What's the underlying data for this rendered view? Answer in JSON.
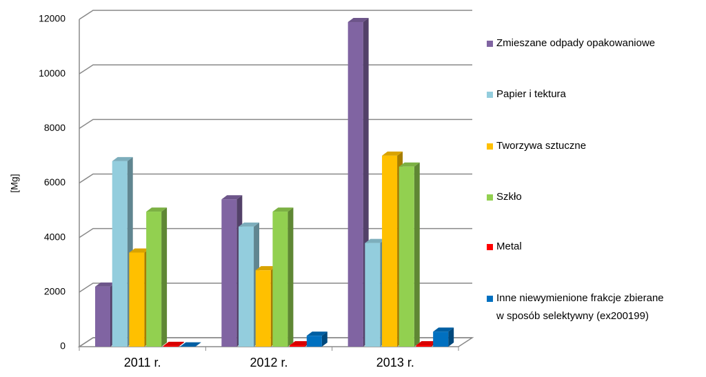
{
  "chart_data": {
    "type": "bar3d",
    "y_label": "[Mg]",
    "categories": [
      "2011 r.",
      "2012 r.",
      "2013 r."
    ],
    "series": [
      {
        "name": "Zmieszane odpady opakowaniowe",
        "color": "#8064a2",
        "values": [
          2200,
          5400,
          11900
        ]
      },
      {
        "name": "Papier i tektura",
        "color": "#93cddd",
        "values": [
          6800,
          4400,
          3800
        ]
      },
      {
        "name": "Tworzywa sztuczne",
        "color": "#ffc000",
        "values": [
          3450,
          2800,
          7000
        ]
      },
      {
        "name": "Szkło",
        "color": "#92d050",
        "values": [
          4950,
          4950,
          6600
        ]
      },
      {
        "name": "Metal",
        "color": "#ff0000",
        "values": [
          30,
          50,
          50
        ]
      },
      {
        "name": "Inne niewymienione frakcje zbierane w sposób selektywny (ex200199)",
        "color": "#0070c0",
        "values": [
          10,
          400,
          550
        ]
      }
    ],
    "ylim": [
      0,
      12000
    ],
    "yticks": [
      0,
      2000,
      4000,
      6000,
      8000,
      10000,
      12000
    ],
    "grid": true,
    "legend": "right"
  }
}
